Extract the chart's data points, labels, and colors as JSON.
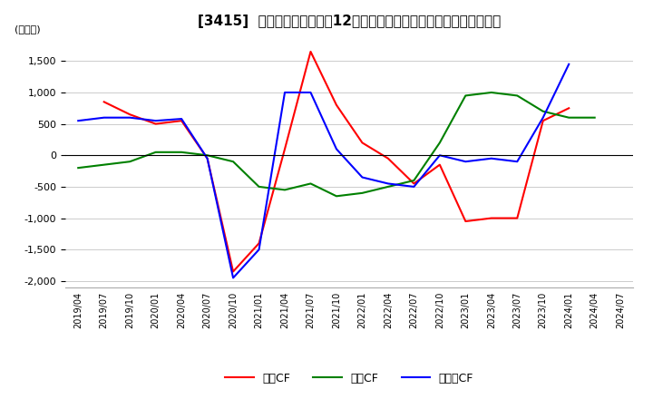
{
  "title": "[3415]  キャッシュフローの12か月移動合計の対前年同期増減額の推移",
  "ylabel": "(百万円)",
  "ylim": [
    -2100,
    1900
  ],
  "yticks": [
    -2000,
    -1500,
    -1000,
    -500,
    0,
    500,
    1000,
    1500
  ],
  "legend_labels": [
    "営業CF",
    "投資CF",
    "フリーCF"
  ],
  "line_colors": [
    "#ff0000",
    "#008000",
    "#0000ff"
  ],
  "x_labels": [
    "2019/04",
    "2019/07",
    "2019/10",
    "2020/01",
    "2020/04",
    "2020/07",
    "2020/10",
    "2021/01",
    "2021/04",
    "2021/07",
    "2021/10",
    "2022/01",
    "2022/04",
    "2022/07",
    "2022/10",
    "2023/01",
    "2023/04",
    "2023/07",
    "2023/10",
    "2024/01",
    "2024/04",
    "2024/07"
  ],
  "operating_cf": [
    null,
    850,
    650,
    500,
    550,
    -50,
    -1850,
    -1400,
    100,
    1650,
    800,
    200,
    -50,
    -450,
    -150,
    -1050,
    -1000,
    -1000,
    550,
    750,
    null,
    null
  ],
  "investing_cf": [
    -200,
    -150,
    -100,
    50,
    50,
    0,
    -100,
    -500,
    -550,
    -450,
    -650,
    -600,
    -500,
    -400,
    200,
    950,
    1000,
    950,
    700,
    600,
    600,
    null
  ],
  "free_cf": [
    550,
    600,
    600,
    550,
    580,
    -50,
    -1950,
    -1500,
    1000,
    1000,
    100,
    -350,
    -450,
    -500,
    0,
    -100,
    -50,
    -100,
    600,
    1450,
    null,
    null
  ],
  "background_color": "#ffffff",
  "grid_color": "#cccccc",
  "title_fontsize": 11,
  "axis_fontsize": 8,
  "legend_fontsize": 9
}
